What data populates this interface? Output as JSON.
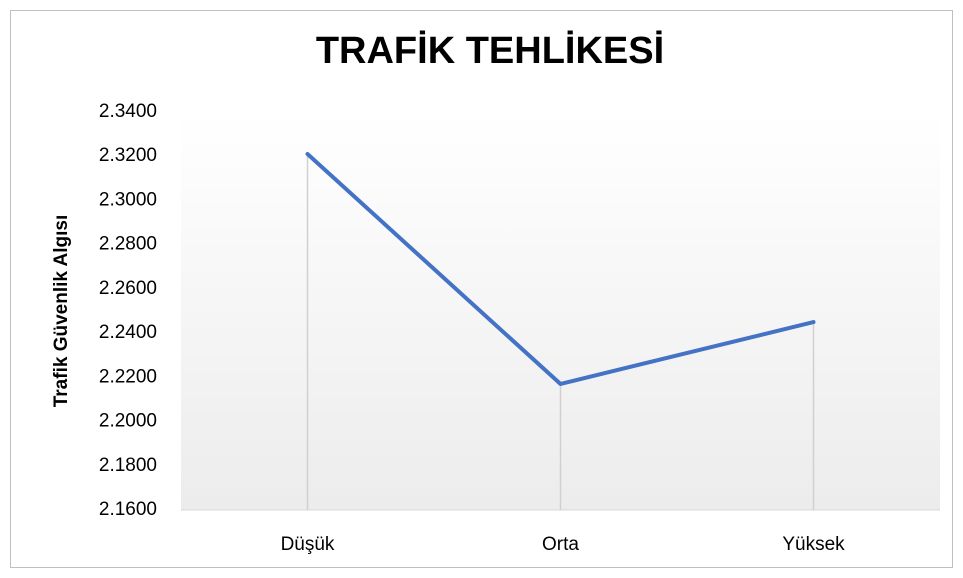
{
  "chart_data": {
    "type": "line",
    "title": "TRAFİK TEHLİKESİ",
    "y_label": "Trafik Güvenlik Algısı",
    "categories": [
      "Düşük",
      "Orta",
      "Yüksek"
    ],
    "series": [
      {
        "name": "Trafik Güvenlik Algısı",
        "color": "#4472c4",
        "values": [
          2.321,
          2.217,
          2.245
        ]
      }
    ],
    "ylim": [
      2.16,
      2.34
    ],
    "yticks": [
      {
        "value": 2.16,
        "label": "2.1600"
      },
      {
        "value": 2.18,
        "label": "2.1800"
      },
      {
        "value": 2.2,
        "label": "2.2000"
      },
      {
        "value": 2.22,
        "label": "2.2200"
      },
      {
        "value": 2.24,
        "label": "2.2400"
      },
      {
        "value": 2.26,
        "label": "2.2600"
      },
      {
        "value": 2.28,
        "label": "2.2800"
      },
      {
        "value": 2.3,
        "label": "2.3000"
      },
      {
        "value": 2.32,
        "label": "2.3200"
      },
      {
        "value": 2.34,
        "label": "2.3400"
      }
    ],
    "drop_lines": true
  }
}
